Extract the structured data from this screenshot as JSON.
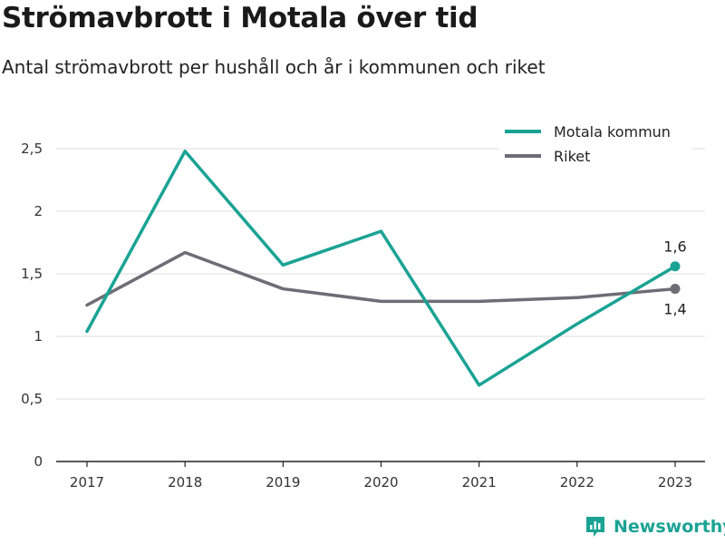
{
  "title": "Strömavbrott i Motala över tid",
  "subtitle": "Antal strömavbrott per hushåll och år i kommunen och riket",
  "brand": {
    "name": "Newsworthy",
    "icon": "newsworthy-logo-icon",
    "color": "#1aa394"
  },
  "chart_data": {
    "type": "line",
    "x": [
      "2017",
      "2018",
      "2019",
      "2020",
      "2021",
      "2022",
      "2023"
    ],
    "ylim": [
      0,
      2.5
    ],
    "yticks": [
      0,
      0.5,
      1,
      1.5,
      2,
      2.5
    ],
    "ytick_labels": [
      "0",
      "0,5",
      "1",
      "1,5",
      "2",
      "2,5"
    ],
    "grid": true,
    "legend_position": "top-right",
    "series": [
      {
        "name": "Motala kommun",
        "color": "#1aa394",
        "values": [
          1.04,
          2.48,
          1.57,
          1.84,
          0.61,
          1.1,
          1.56
        ],
        "end_label": "1,6"
      },
      {
        "name": "Riket",
        "color": "#6e6d75",
        "values": [
          1.25,
          1.67,
          1.38,
          1.28,
          1.28,
          1.31,
          1.38
        ],
        "end_label": "1,4"
      }
    ]
  }
}
